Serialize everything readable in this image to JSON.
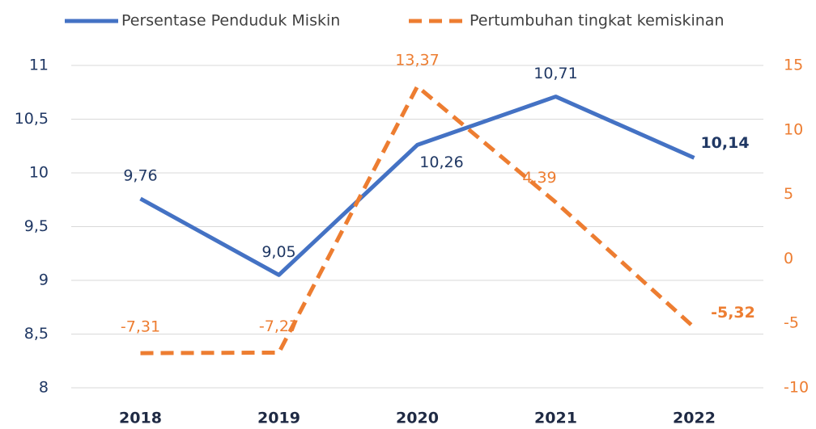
{
  "chart_data": {
    "type": "line",
    "categories": [
      "2018",
      "2019",
      "2020",
      "2021",
      "2022"
    ],
    "series": [
      {
        "name": "Persentase Penduduk Miskin",
        "color": "#4472c4",
        "dashed": false,
        "values": [
          9.76,
          9.05,
          10.26,
          10.71,
          10.14
        ],
        "value_labels": [
          "9,76",
          "9,05",
          "10,26",
          "10,71",
          "10,14"
        ],
        "bold_last_label": true
      },
      {
        "name": "Pertumbuhan tingkat kemiskinan",
        "color": "#ed7d31",
        "dashed": true,
        "axis": "y2",
        "values": [
          -7.31,
          -7.27,
          13.37,
          4.39,
          -5.32
        ],
        "value_labels": [
          "-7,31",
          "-7,27",
          "13,37",
          "4,39",
          "-5,32"
        ],
        "bold_last_label": true
      }
    ],
    "ylim": [
      8,
      11
    ],
    "yticks": [
      8,
      {
        "value": 8.5,
        "label": "8,5"
      },
      9,
      {
        "value": 9.5,
        "label": "9,5"
      },
      10,
      {
        "value": 10.5,
        "label": "10,5"
      },
      11
    ],
    "y2lim": [
      -10,
      15
    ],
    "y2ticks": [
      -10,
      -5,
      0,
      5,
      10,
      15
    ],
    "grid": true,
    "legend": "top"
  }
}
